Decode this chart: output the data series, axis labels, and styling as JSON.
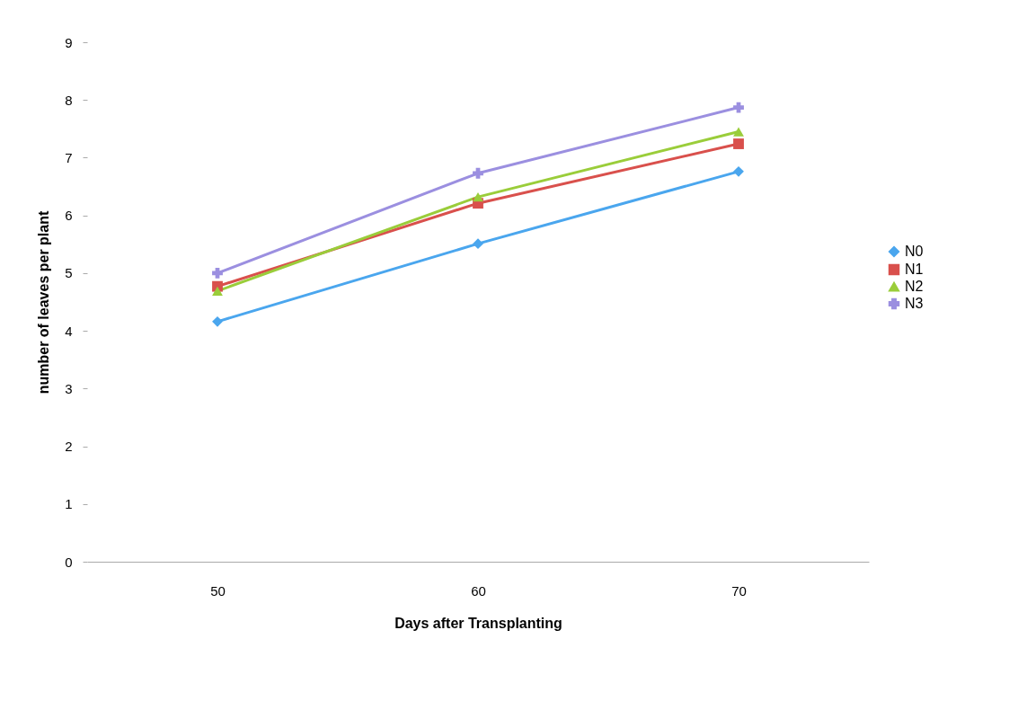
{
  "chart_data": {
    "type": "line",
    "xlabel": "Days after Transplanting",
    "ylabel": "number of leaves per plant",
    "categories": [
      "50",
      "60",
      "70"
    ],
    "ylim": [
      0,
      9
    ],
    "yticks": [
      0,
      1,
      2,
      3,
      4,
      5,
      6,
      7,
      8,
      9
    ],
    "grid": false,
    "legend": "right",
    "series": [
      {
        "name": "N0",
        "color": "#4aa6ee",
        "marker": "diamond",
        "values": [
          4.16,
          5.51,
          6.76
        ]
      },
      {
        "name": "N1",
        "color": "#d9504c",
        "marker": "square",
        "values": [
          4.77,
          6.21,
          7.24
        ]
      },
      {
        "name": "N2",
        "color": "#9acd3a",
        "marker": "triangle",
        "values": [
          4.69,
          6.32,
          7.45
        ]
      },
      {
        "name": "N3",
        "color": "#9b8fe0",
        "marker": "cross",
        "values": [
          5.0,
          6.73,
          7.87
        ]
      }
    ]
  }
}
